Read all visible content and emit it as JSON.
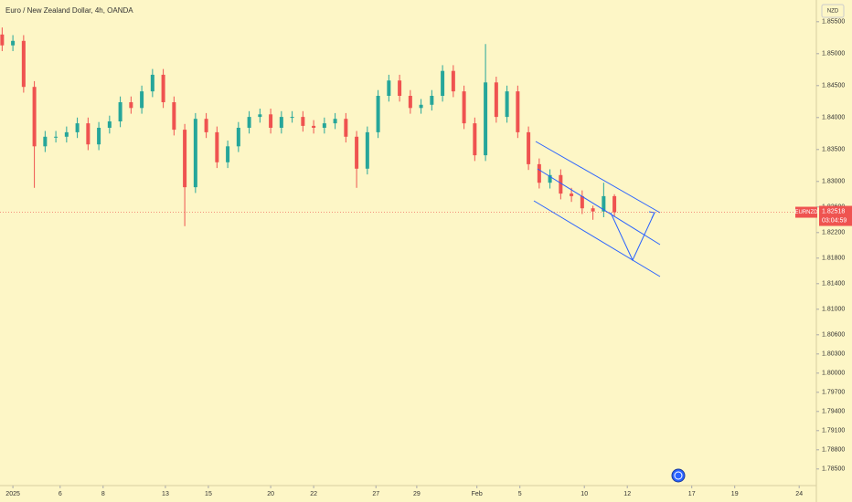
{
  "chart_data": {
    "type": "candlestick",
    "title": "Euro / New Zealand Dollar, 4h, OANDA",
    "currency": "NZD",
    "symbol": "EURNZD",
    "countdown": "03:04:59",
    "last_price": 1.82518,
    "up_color": "#26a69a",
    "down_color": "#ef5350",
    "x": [
      -0.5,
      0,
      0.5,
      1,
      1.5,
      2,
      2.5,
      3,
      3.5,
      4,
      4.5,
      5,
      5.5,
      6,
      6.5,
      7,
      7.5,
      8,
      8.5,
      9,
      9.5,
      10,
      10.5,
      11,
      11.5,
      12,
      12.5,
      13,
      13.5,
      14,
      14.5,
      15,
      15.5,
      16,
      16.5,
      17,
      17.5,
      18,
      18.5,
      19,
      19.5,
      20,
      20.5,
      21,
      21.5,
      22,
      22.5,
      23,
      23.5,
      24,
      24.5,
      25,
      25.5,
      26,
      26.5,
      27,
      27.5,
      28
    ],
    "open": [
      1.853,
      1.8513,
      1.852,
      1.8448,
      1.8355,
      1.837,
      1.837,
      1.8377,
      1.8391,
      1.8358,
      1.8384,
      1.8394,
      1.8424,
      1.8415,
      1.8441,
      1.8467,
      1.8424,
      1.8381,
      1.8291,
      1.8398,
      1.8377,
      1.833,
      1.8355,
      1.8384,
      1.8401,
      1.8405,
      1.8384,
      1.8401,
      1.8401,
      1.8387,
      1.8384,
      1.8391,
      1.8398,
      1.837,
      1.832,
      1.8377,
      1.8434,
      1.8458,
      1.8434,
      1.8415,
      1.842,
      1.8434,
      1.8473,
      1.8441,
      1.8391,
      1.8341,
      1.8455,
      1.8401,
      1.8441,
      1.8377,
      1.8327,
      1.8298,
      1.831,
      1.8281,
      1.8277,
      1.8258,
      1.8253,
      1.8277
    ],
    "high": [
      1.8541,
      1.8529,
      1.8529,
      1.8457,
      1.8379,
      1.8379,
      1.8386,
      1.84,
      1.84,
      1.8393,
      1.8403,
      1.8433,
      1.8433,
      1.845,
      1.8476,
      1.8476,
      1.8433,
      1.839,
      1.8407,
      1.8407,
      1.8386,
      1.8364,
      1.8393,
      1.841,
      1.8414,
      1.8414,
      1.841,
      1.841,
      1.841,
      1.8396,
      1.84,
      1.8407,
      1.8407,
      1.8379,
      1.8386,
      1.8443,
      1.8467,
      1.8467,
      1.8443,
      1.8429,
      1.8443,
      1.8482,
      1.8482,
      1.845,
      1.84,
      1.8515,
      1.8464,
      1.845,
      1.845,
      1.8386,
      1.8336,
      1.8319,
      1.8319,
      1.829,
      1.8286,
      1.8262,
      1.8298,
      1.828
    ],
    "low": [
      1.8504,
      1.8504,
      1.8439,
      1.829,
      1.8346,
      1.8361,
      1.8361,
      1.8368,
      1.8349,
      1.8349,
      1.8375,
      1.8385,
      1.8406,
      1.8406,
      1.8432,
      1.8415,
      1.8372,
      1.823,
      1.8282,
      1.8368,
      1.8321,
      1.8321,
      1.8346,
      1.8375,
      1.8392,
      1.8375,
      1.8375,
      1.8392,
      1.8378,
      1.8375,
      1.8375,
      1.8382,
      1.8361,
      1.829,
      1.8311,
      1.8368,
      1.8425,
      1.8425,
      1.8406,
      1.8406,
      1.8411,
      1.8425,
      1.8432,
      1.8382,
      1.8332,
      1.8332,
      1.8392,
      1.8392,
      1.8368,
      1.8318,
      1.8289,
      1.8289,
      1.8272,
      1.8268,
      1.8249,
      1.824,
      1.8244,
      1.8245
    ],
    "close": [
      1.8513,
      1.852,
      1.8448,
      1.8355,
      1.837,
      1.837,
      1.8377,
      1.8391,
      1.8358,
      1.8384,
      1.8394,
      1.8424,
      1.8415,
      1.8441,
      1.8467,
      1.8424,
      1.8381,
      1.8291,
      1.8398,
      1.8377,
      1.833,
      1.8355,
      1.8384,
      1.8401,
      1.8405,
      1.8384,
      1.8401,
      1.8401,
      1.8387,
      1.8384,
      1.8391,
      1.8398,
      1.837,
      1.832,
      1.8377,
      1.8434,
      1.8458,
      1.8434,
      1.8415,
      1.842,
      1.8434,
      1.8473,
      1.8441,
      1.8391,
      1.8341,
      1.8455,
      1.8401,
      1.8441,
      1.8377,
      1.8327,
      1.8298,
      1.831,
      1.8281,
      1.8277,
      1.8258,
      1.8253,
      1.8277,
      1.82518
    ],
    "xlim": [
      -0.6,
      37.4
    ],
    "xticks": [
      {
        "value": 0,
        "label": "2025"
      },
      {
        "value": 2.2,
        "label": "6"
      },
      {
        "value": 4.2,
        "label": "8"
      },
      {
        "value": 7.1,
        "label": "13"
      },
      {
        "value": 9.1,
        "label": "15"
      },
      {
        "value": 12.0,
        "label": "20"
      },
      {
        "value": 14.0,
        "label": "22"
      },
      {
        "value": 16.9,
        "label": "27"
      },
      {
        "value": 18.8,
        "label": "29"
      },
      {
        "value": 21.6,
        "label": "Feb"
      },
      {
        "value": 23.6,
        "label": "5"
      },
      {
        "value": 26.6,
        "label": "10"
      },
      {
        "value": 28.6,
        "label": "12"
      },
      {
        "value": 31.6,
        "label": "17"
      },
      {
        "value": 33.6,
        "label": "19"
      },
      {
        "value": 36.6,
        "label": "24"
      }
    ],
    "ylim": [
      1.7824,
      1.8584
    ],
    "yticks": [
      {
        "value": 1.855,
        "label": "1.85500"
      },
      {
        "value": 1.85,
        "label": "1.85000"
      },
      {
        "value": 1.845,
        "label": "1.84500"
      },
      {
        "value": 1.84,
        "label": "1.84000"
      },
      {
        "value": 1.835,
        "label": "1.83500"
      },
      {
        "value": 1.83,
        "label": "1.83000"
      },
      {
        "value": 1.826,
        "label": "1.82600"
      },
      {
        "value": 1.822,
        "label": "1.82200"
      },
      {
        "value": 1.818,
        "label": "1.81800"
      },
      {
        "value": 1.814,
        "label": "1.81400"
      },
      {
        "value": 1.81,
        "label": "1.81000"
      },
      {
        "value": 1.806,
        "label": "1.80600"
      },
      {
        "value": 1.803,
        "label": "1.80300"
      },
      {
        "value": 1.8,
        "label": "1.80000"
      },
      {
        "value": 1.797,
        "label": "1.79700"
      },
      {
        "value": 1.794,
        "label": "1.79400"
      },
      {
        "value": 1.791,
        "label": "1.79100"
      },
      {
        "value": 1.788,
        "label": "1.78800"
      },
      {
        "value": 1.785,
        "label": "1.78500"
      }
    ]
  }
}
